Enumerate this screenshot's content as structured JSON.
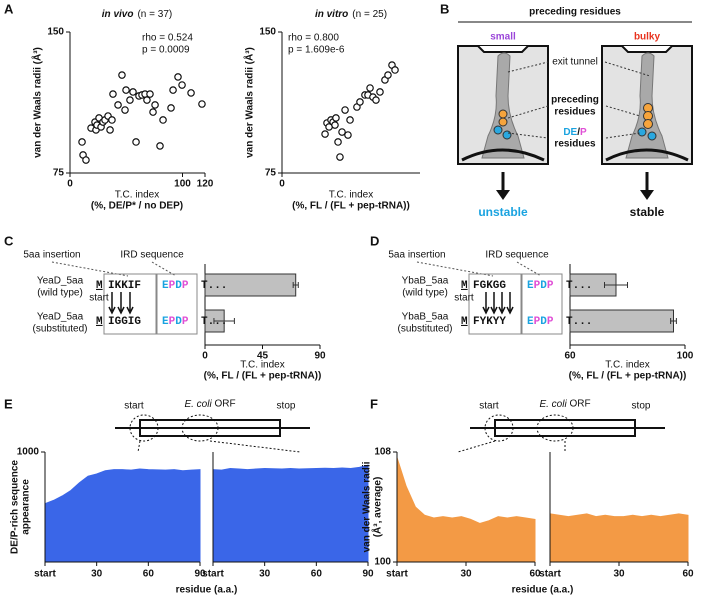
{
  "panel_labels": [
    "A",
    "B",
    "C",
    "D",
    "E",
    "F"
  ],
  "chart_data": [
    {
      "type": "scatter",
      "title": "in vivo",
      "subtitle": "(n = 37)",
      "ylabel": "van der Waals radii (Å³)",
      "xlabel": "T.C. index",
      "xlabel_note": "(%, DE/P* / no DEP)",
      "annotations": [
        "rho = 0.524",
        "p = 0.0009"
      ],
      "xlim": [
        0,
        120
      ],
      "ylim": [
        75,
        150
      ],
      "xticks": [
        0,
        100,
        120
      ],
      "yticks": [
        75,
        150
      ],
      "x": [
        10.7,
        11.6,
        14.2,
        18.7,
        22.2,
        23.1,
        24,
        25.8,
        27.6,
        29.3,
        31.1,
        33.8,
        35.6,
        37.3,
        38.2,
        42.7,
        46.2,
        48.9,
        49.8,
        53.3,
        56,
        58.7,
        61.3,
        64,
        66.7,
        68.4,
        71.1,
        73.8,
        75.6,
        80,
        82.7,
        89.8,
        91.6,
        96,
        99.6,
        107.6,
        117.3
      ],
      "values": [
        91.5,
        84.6,
        81.9,
        98.9,
        102.1,
        97.9,
        100.5,
        104.3,
        99.5,
        102.1,
        103.2,
        105.3,
        97.9,
        103.2,
        117,
        111.2,
        127.1,
        108.5,
        119.1,
        113.8,
        118.1,
        91.5,
        116,
        116.5,
        117,
        113.8,
        117,
        107.4,
        111.2,
        89.4,
        103.2,
        109.6,
        119.1,
        126.1,
        121.8,
        117.6,
        111.7
      ]
    },
    {
      "type": "scatter",
      "title": "in vitro",
      "subtitle": "(n = 25)",
      "ylabel": "van der Waals radii (Å³)",
      "xlabel": "T.C. index",
      "xlabel_note": "(%, FL / (FL + pep-tRNA))",
      "annotations": [
        "rho = 0.800",
        "p = 1.609e-6"
      ],
      "xlim": [
        0,
        100
      ],
      "ylim": [
        75,
        150
      ],
      "xticks": [
        0
      ],
      "yticks": [
        75,
        150
      ],
      "x": [
        31.2,
        32.6,
        34.1,
        35.5,
        37,
        38.4,
        39.1,
        40.6,
        42,
        43.5,
        45.7,
        47.8,
        49.3,
        54.3,
        56.5,
        60.1,
        62.3,
        63.8,
        65.9,
        68.1,
        71,
        74.6,
        76.8,
        79.7,
        81.9
      ],
      "values": [
        95.7,
        101.6,
        99.5,
        103.2,
        102.1,
        100.5,
        104.3,
        91.5,
        83.5,
        96.8,
        108.5,
        95.2,
        103.2,
        110.1,
        112.8,
        116.5,
        116.5,
        120.2,
        115.4,
        113.8,
        118.1,
        124.5,
        127.1,
        132.4,
        129.8
      ]
    },
    {
      "type": "hbar",
      "values": [
        71,
        15
      ],
      "errors": [
        2,
        8
      ],
      "color": "#c0c0c0",
      "xlim": [
        0,
        90
      ],
      "xticks": [
        0,
        45,
        90
      ],
      "xlabel": "T.C. index",
      "xlabel_note": "(%, FL / (FL + pep-tRNA))"
    },
    {
      "type": "hbar",
      "values": [
        76,
        96
      ],
      "errors": [
        4,
        1
      ],
      "color": "#c0c0c0",
      "xlim": [
        60,
        100
      ],
      "xticks": [
        60,
        100
      ],
      "xlabel": "T.C. index",
      "xlabel_note": "(%, FL / (FL + pep-tRNA))"
    },
    {
      "type": "area",
      "color": "#3a66e8",
      "ylabel": [
        "DE/P-rich sequence",
        "appearance"
      ],
      "xlabel": "residue (a.a.)",
      "ylim": [
        0,
        1000
      ],
      "yticks": [
        1000
      ],
      "xlim": [
        0,
        90
      ],
      "xticks": [
        {
          "value": 0,
          "label": "start"
        },
        30,
        60,
        90
      ],
      "subplots": [
        {
          "x": [
            0,
            5,
            10,
            15,
            20,
            25,
            30,
            35,
            40,
            45,
            50,
            55,
            60,
            65,
            70,
            75,
            80,
            85,
            90
          ],
          "values": [
            530,
            560,
            600,
            650,
            720,
            780,
            800,
            830,
            840,
            840,
            835,
            845,
            840,
            838,
            835,
            840,
            830,
            835,
            840
          ]
        },
        {
          "x": [
            0,
            5,
            10,
            15,
            20,
            25,
            30,
            35,
            40,
            45,
            50,
            55,
            60,
            65,
            70,
            75,
            80,
            85,
            90
          ],
          "values": [
            840,
            835,
            850,
            845,
            840,
            845,
            850,
            848,
            845,
            850,
            845,
            848,
            850,
            852,
            850,
            855,
            850,
            860,
            880
          ]
        }
      ]
    },
    {
      "type": "area",
      "color": "#f39a45",
      "ylabel": [
        "van der Waals radii",
        "(Å³, average)"
      ],
      "xlabel": "residue (a.a.)",
      "ylim": [
        100,
        108
      ],
      "yticks": [
        100,
        108
      ],
      "xlim": [
        0,
        60
      ],
      "xticks": [
        {
          "value": 0,
          "label": "start"
        },
        30,
        60
      ],
      "subplots": [
        {
          "x": [
            0,
            4,
            8,
            12,
            16,
            20,
            24,
            28,
            32,
            36,
            40,
            44,
            48,
            52,
            56,
            60
          ],
          "values": [
            107.6,
            105.5,
            104.0,
            103.4,
            103.2,
            103.3,
            103.2,
            103.3,
            103.1,
            102.8,
            103.0,
            103.3,
            103.2,
            103.3,
            103.2,
            103.1
          ]
        },
        {
          "x": [
            0,
            4,
            8,
            12,
            16,
            20,
            24,
            28,
            32,
            36,
            40,
            44,
            48,
            52,
            56,
            60
          ],
          "values": [
            103.5,
            103.4,
            103.3,
            103.4,
            103.5,
            103.3,
            103.4,
            103.3,
            103.3,
            103.4,
            103.3,
            103.4,
            103.3,
            103.4,
            103.5,
            103.4
          ]
        }
      ]
    }
  ],
  "diagram_b": {
    "header": "preceding residues",
    "left": "small",
    "right": "bulky",
    "tunnel": "exit tunnel",
    "preceding": [
      "preceding",
      "residues"
    ],
    "dep": [
      "DE/P",
      "residues"
    ],
    "left_outcome": "unstable",
    "right_outcome": "stable"
  },
  "residue_colors": {
    "E": "#1aa3e0",
    "D": "#1aa3e0",
    "P": "#e04fd6"
  },
  "sequences_c": {
    "insertion_label": "5aa insertion",
    "ird_label": "IRD sequence",
    "start_note": "start",
    "rows": [
      {
        "name": "YeaD_5aa",
        "note": "(wild type)",
        "start": "M",
        "insert": "IKKIF",
        "insert_color": "#e8321e",
        "ird": "EPDP",
        "tail": "T..."
      },
      {
        "name": "YeaD_5aa",
        "note": "(substituted)",
        "start": "M",
        "insert": "IGGIG",
        "insert_color": "#8a3fd1",
        "ird": "EPDP",
        "tail": "T..."
      }
    ]
  },
  "sequences_d": {
    "insertion_label": "5aa insertion",
    "ird_label": "IRD sequence",
    "start_note": "start",
    "rows": [
      {
        "name": "YbaB_5aa",
        "note": "(wild type)",
        "start": "M",
        "insert": "FGKGG",
        "insert_color": "#8a3fd1",
        "ird": "EPDP",
        "tail": "T..."
      },
      {
        "name": "YbaB_5aa",
        "note": "(substituted)",
        "start": "M",
        "insert": "FYKYY",
        "insert_color": "#e8321e",
        "ird": "EPDP",
        "tail": "T..."
      }
    ]
  },
  "orf_e": {
    "start": "start",
    "name": "E. coli ORF",
    "stop": "stop"
  },
  "orf_f": {
    "start": "start",
    "name": "E. coli ORF",
    "stop": "stop"
  }
}
